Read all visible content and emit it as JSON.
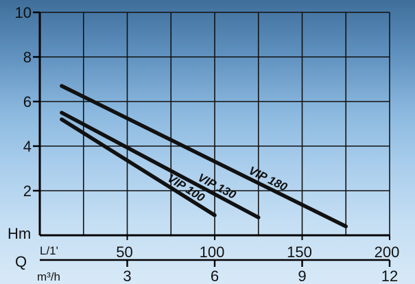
{
  "chart_data": {
    "type": "line",
    "title": "",
    "ylabel": "Hm",
    "qlabel": "Q",
    "xlabel_flow": "L/1'",
    "xlabel_volume": "m³/h",
    "xlim": [
      0,
      200
    ],
    "ylim": [
      0,
      10
    ],
    "grid": true,
    "y_ticks": [
      {
        "value": 0,
        "label": "Hm"
      },
      {
        "value": 2,
        "label": "2"
      },
      {
        "value": 4,
        "label": "4"
      },
      {
        "value": 6,
        "label": "6"
      },
      {
        "value": 8,
        "label": "8"
      },
      {
        "value": 10,
        "label": "10"
      }
    ],
    "x_ticks_flow": [
      {
        "value": 50,
        "label": "50"
      },
      {
        "value": 100,
        "label": "100"
      },
      {
        "value": 150,
        "label": "150"
      },
      {
        "value": 200,
        "label": "200"
      }
    ],
    "x_ticks_volume": [
      {
        "value": 3,
        "label": "3"
      },
      {
        "value": 6,
        "label": "6"
      },
      {
        "value": 9,
        "label": "9"
      },
      {
        "value": 12,
        "label": "12"
      }
    ],
    "series": [
      {
        "name": "VIP 180",
        "x": [
          12.5,
          175
        ],
        "y": [
          6.7,
          0.4
        ]
      },
      {
        "name": "VIP 130",
        "x": [
          12.5,
          125
        ],
        "y": [
          5.5,
          0.8
        ]
      },
      {
        "name": "VIP 100",
        "x": [
          12.5,
          100
        ],
        "y": [
          5.2,
          0.9
        ]
      }
    ]
  }
}
